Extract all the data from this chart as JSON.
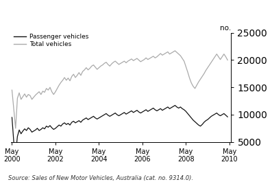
{
  "ylabel_right": "no.",
  "source": "Source: Sales of New Motor Vehicles, Australia (cat. no. 9314.0).",
  "ylim": [
    5000,
    25000
  ],
  "yticks": [
    5000,
    10000,
    15000,
    20000,
    25000
  ],
  "legend_passenger": "Passenger vehicles",
  "legend_total": "Total vehicles",
  "line_color_passenger": "#111111",
  "line_color_total": "#aaaaaa",
  "background_color": "#ffffff",
  "passenger_vehicles": [
    9500,
    5000,
    2800,
    6000,
    7200,
    6500,
    7000,
    7400,
    7100,
    7600,
    7300,
    6800,
    7000,
    7200,
    7500,
    7100,
    7300,
    7600,
    7400,
    7900,
    7700,
    8000,
    7600,
    7300,
    7500,
    7800,
    8100,
    7900,
    8300,
    8500,
    8200,
    8400,
    8100,
    8600,
    8800,
    8500,
    8700,
    8900,
    8600,
    9000,
    9200,
    9400,
    9100,
    9300,
    9500,
    9700,
    9400,
    9200,
    9400,
    9600,
    9800,
    10000,
    10200,
    9900,
    9700,
    9900,
    10100,
    10300,
    10000,
    9800,
    10000,
    10200,
    10400,
    10100,
    10300,
    10500,
    10700,
    10400,
    10600,
    10800,
    10500,
    10300,
    10500,
    10700,
    10900,
    10600,
    10800,
    11000,
    11200,
    10900,
    10700,
    10900,
    11100,
    10800,
    11000,
    11200,
    11400,
    11100,
    11300,
    11500,
    11700,
    11400,
    11200,
    11400,
    11100,
    10900,
    10600,
    10200,
    9800,
    9400,
    9000,
    8700,
    8400,
    8100,
    7900,
    8200,
    8600,
    8900,
    9100,
    9400,
    9700,
    9900,
    10100,
    10300,
    10000,
    9800,
    10000,
    10200,
    9900,
    9600
  ],
  "total_vehicles": [
    14500,
    11000,
    7500,
    13000,
    14000,
    12800,
    13300,
    13800,
    13200,
    13700,
    13500,
    12800,
    13200,
    13600,
    13900,
    14200,
    13700,
    14300,
    14100,
    14800,
    14500,
    15000,
    14200,
    13700,
    14200,
    14800,
    15400,
    15900,
    16300,
    16800,
    16300,
    16700,
    16200,
    17000,
    17400,
    16800,
    17200,
    17700,
    17200,
    17900,
    18200,
    18600,
    18200,
    18500,
    18900,
    19100,
    18700,
    18300,
    18600,
    18900,
    19100,
    19400,
    19600,
    19200,
    18900,
    19300,
    19600,
    19800,
    19500,
    19200,
    19400,
    19600,
    19800,
    19500,
    19800,
    20000,
    20200,
    19900,
    20100,
    20300,
    20000,
    19700,
    19900,
    20100,
    20400,
    20100,
    20300,
    20500,
    20700,
    20400,
    20600,
    20900,
    21200,
    20900,
    21100,
    21300,
    21500,
    21100,
    21300,
    21500,
    21700,
    21400,
    21100,
    20800,
    20300,
    19800,
    18800,
    17800,
    16700,
    15800,
    15200,
    14800,
    15400,
    16000,
    16500,
    17000,
    17500,
    18100,
    18600,
    19100,
    19600,
    20100,
    20600,
    21100,
    20600,
    20100,
    20600,
    21100,
    20600,
    20000
  ]
}
